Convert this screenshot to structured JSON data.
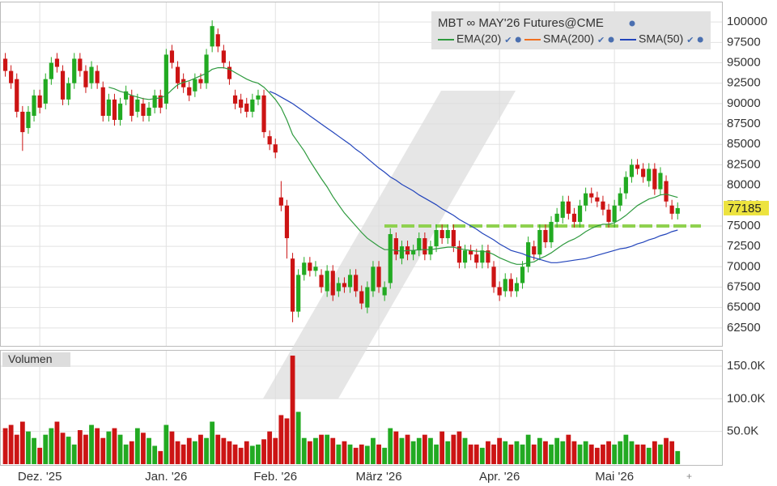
{
  "chart_data": {
    "type": "candlestick",
    "title": "MBT ∞ MAY'26 Futures@CME",
    "categories": [
      null,
      null,
      null,
      null,
      null,
      null,
      "Dez. '25",
      null,
      null,
      null,
      null,
      null,
      null,
      null,
      null,
      null,
      null,
      null,
      null,
      null,
      null,
      null,
      null,
      null,
      null,
      null,
      null,
      null,
      "Jan. '26",
      null,
      null,
      null,
      null,
      null,
      null,
      null,
      null,
      null,
      null,
      null,
      null,
      null,
      null,
      null,
      null,
      null,
      null,
      "Feb. '26",
      null,
      null,
      null,
      null,
      null,
      null,
      null,
      null,
      null,
      null,
      null,
      null,
      null,
      null,
      null,
      null,
      null,
      "März '26",
      null,
      null,
      null,
      null,
      null,
      null,
      null,
      null,
      null,
      null,
      null,
      null,
      null,
      null,
      null,
      null,
      null,
      null,
      null,
      null,
      "Apr. '26",
      null,
      null,
      null,
      null,
      null,
      null,
      null,
      null,
      null,
      null,
      null,
      null,
      null,
      null,
      null,
      null,
      null,
      null,
      null,
      "Mai '26",
      null,
      null,
      null,
      null,
      null,
      null,
      null,
      null,
      null,
      null,
      null
    ],
    "open": [
      95500,
      94000,
      93000,
      89000,
      87000,
      88500,
      91000,
      90000,
      93000,
      95500,
      94000,
      90500,
      92500,
      95500,
      94000,
      92500,
      94000,
      92000,
      88500,
      90500,
      88000,
      90500,
      91000,
      89000,
      90000,
      88500,
      89500,
      91000,
      90000,
      96500,
      94500,
      93000,
      92000,
      91500,
      93000,
      92500,
      97000,
      98500,
      96500,
      94500,
      91000,
      90500,
      90000,
      89000,
      90500,
      91000,
      86000,
      85000,
      78500,
      77500,
      71000,
      64500,
      69000,
      70500,
      69500,
      69000,
      67000,
      69500,
      67000,
      68000,
      67500,
      69000,
      67000,
      65000,
      67000,
      70000,
      66500,
      68000,
      73500,
      71000,
      72500,
      71500,
      72000,
      73500,
      71500,
      72500,
      74500,
      73500,
      74500,
      72500,
      70500,
      72000,
      71500,
      70500,
      72000,
      70000,
      67500,
      67000,
      68500,
      67000,
      68000,
      70000,
      72500,
      71500,
      74500,
      73000,
      75500,
      76000,
      78000,
      76500,
      75500,
      77500,
      79000,
      78500,
      78000,
      77000,
      75500,
      77500,
      79000,
      81000,
      82500,
      82000,
      80500,
      82000,
      79500,
      80500,
      77500,
      76500
    ],
    "high": [
      96200,
      94700,
      93700,
      89700,
      89700,
      91700,
      91700,
      93700,
      95700,
      96200,
      94700,
      93200,
      96200,
      96200,
      94700,
      95200,
      94700,
      92700,
      91200,
      91200,
      90700,
      92200,
      91700,
      91200,
      90700,
      90200,
      91700,
      91700,
      96700,
      97200,
      95200,
      93700,
      92700,
      93700,
      93700,
      96700,
      100200,
      99200,
      97200,
      95200,
      91700,
      91200,
      90700,
      91200,
      91700,
      91700,
      86700,
      85700,
      80500,
      78200,
      71700,
      69700,
      71200,
      71200,
      70700,
      69700,
      70200,
      70200,
      68700,
      68700,
      69700,
      69700,
      67700,
      68200,
      70700,
      70700,
      68200,
      74700,
      74200,
      73200,
      73200,
      72700,
      74200,
      74200,
      73200,
      75200,
      75200,
      75200,
      75200,
      73200,
      72700,
      72700,
      72200,
      72700,
      72700,
      70700,
      68200,
      69200,
      69200,
      68700,
      70700,
      73700,
      73200,
      75200,
      75200,
      76200,
      77200,
      78700,
      78700,
      77200,
      78200,
      79700,
      79700,
      79200,
      78700,
      77700,
      78200,
      79700,
      81700,
      83200,
      83200,
      82700,
      82700,
      82700,
      82200,
      81200,
      78200,
      77885
    ],
    "low": [
      93300,
      91800,
      88300,
      84200,
      86300,
      87800,
      88800,
      89300,
      92300,
      93800,
      89800,
      89800,
      91800,
      93300,
      91300,
      91800,
      91800,
      87800,
      87800,
      87300,
      87300,
      89800,
      87800,
      88300,
      87800,
      87800,
      88800,
      88800,
      89300,
      94300,
      91800,
      91300,
      90300,
      90800,
      91800,
      91800,
      96300,
      96300,
      94300,
      92300,
      89300,
      88800,
      88300,
      88300,
      89800,
      85800,
      84300,
      83300,
      76800,
      71000,
      63200,
      63800,
      68300,
      68800,
      68800,
      66800,
      66300,
      65800,
      66300,
      66800,
      66800,
      66300,
      64800,
      64300,
      66300,
      66800,
      65800,
      67300,
      70800,
      70300,
      70800,
      70800,
      71300,
      70800,
      70800,
      71800,
      72800,
      72800,
      71800,
      69800,
      69800,
      70800,
      69800,
      69800,
      69800,
      66800,
      65800,
      66300,
      66300,
      66300,
      67300,
      69300,
      70800,
      70800,
      72300,
      72300,
      74800,
      75300,
      75800,
      74800,
      74800,
      76800,
      77800,
      77300,
      76300,
      74800,
      74800,
      76800,
      78300,
      80300,
      81300,
      80300,
      79800,
      78800,
      78800,
      77300,
      75800,
      75800
    ],
    "close": [
      94000,
      92500,
      89000,
      86500,
      89000,
      91000,
      89500,
      93000,
      95000,
      94500,
      90500,
      92500,
      95500,
      94000,
      92000,
      94500,
      92500,
      88500,
      90500,
      88000,
      90000,
      91500,
      88500,
      90500,
      88500,
      89500,
      91000,
      89500,
      96000,
      95000,
      92500,
      92000,
      91000,
      93000,
      92500,
      96000,
      99500,
      97000,
      95000,
      93000,
      90000,
      89500,
      89000,
      90500,
      91000,
      86500,
      85000,
      84000,
      77500,
      73500,
      64500,
      69000,
      70500,
      69500,
      70000,
      67500,
      69500,
      66500,
      68000,
      67500,
      69000,
      67000,
      65500,
      67500,
      70000,
      67500,
      67500,
      74000,
      71500,
      72500,
      71500,
      72000,
      73500,
      71500,
      72500,
      74500,
      73500,
      74500,
      72500,
      70500,
      72000,
      71500,
      70500,
      72000,
      70500,
      67500,
      66500,
      68500,
      67000,
      68000,
      70000,
      73000,
      71500,
      74500,
      73000,
      75500,
      76500,
      78000,
      76500,
      75500,
      77500,
      79000,
      78500,
      78000,
      77000,
      75500,
      77500,
      79000,
      81000,
      82500,
      82000,
      81000,
      82000,
      79500,
      81500,
      78000,
      76500,
      77185
    ],
    "up_color": "#22aa22",
    "down_color": "#cc1414",
    "indicators": [
      {
        "name": "EMA(20)",
        "color": "#2e9a3e",
        "values": [
          null,
          null,
          null,
          null,
          null,
          null,
          null,
          null,
          null,
          null,
          null,
          null,
          null,
          null,
          null,
          null,
          null,
          null,
          92000,
          91800,
          91500,
          91300,
          91000,
          90800,
          90600,
          90500,
          90600,
          90700,
          91000,
          91700,
          92300,
          92600,
          92800,
          93100,
          93400,
          93700,
          94200,
          94400,
          94400,
          94200,
          93800,
          93400,
          93000,
          92700,
          92500,
          92000,
          91300,
          90500,
          89500,
          88000,
          86200,
          85200,
          84200,
          83000,
          81900,
          80800,
          79800,
          78600,
          77600,
          76600,
          75800,
          75000,
          74200,
          73500,
          73000,
          72500,
          72100,
          72100,
          72000,
          71900,
          72000,
          72000,
          72100,
          72100,
          72100,
          72200,
          72300,
          72400,
          72400,
          72200,
          72100,
          72000,
          71900,
          71900,
          71800,
          71500,
          71100,
          70800,
          70500,
          70300,
          70300,
          70500,
          70600,
          71000,
          71300,
          71700,
          72200,
          72700,
          73100,
          73400,
          73800,
          74300,
          74700,
          75000,
          75200,
          75200,
          75400,
          75800,
          76300,
          76900,
          77500,
          77900,
          78300,
          78500,
          78800,
          78900,
          78700,
          78500
        ]
      },
      {
        "name": "SMA(200)",
        "color": "#f07020"
      },
      {
        "name": "SMA(50)",
        "color": "#2244bb",
        "values": [
          null,
          null,
          null,
          null,
          null,
          null,
          null,
          null,
          null,
          null,
          null,
          null,
          null,
          null,
          null,
          null,
          null,
          null,
          null,
          null,
          null,
          null,
          null,
          null,
          null,
          null,
          null,
          null,
          null,
          null,
          null,
          null,
          null,
          null,
          null,
          null,
          null,
          null,
          null,
          null,
          null,
          null,
          null,
          null,
          null,
          null,
          91500,
          91200,
          90800,
          90400,
          90000,
          89500,
          89000,
          88500,
          88000,
          87500,
          87000,
          86500,
          86000,
          85500,
          85000,
          84400,
          83900,
          83300,
          82700,
          82100,
          81600,
          81000,
          80600,
          80100,
          79700,
          79300,
          78800,
          78400,
          78000,
          77600,
          77100,
          76700,
          76300,
          75800,
          75400,
          75000,
          74600,
          74100,
          73700,
          73300,
          72800,
          72400,
          72000,
          71800,
          71600,
          71300,
          71100,
          70900,
          70700,
          70500,
          70500,
          70600,
          70700,
          70800,
          70900,
          71000,
          71200,
          71400,
          71600,
          71800,
          72000,
          72200,
          72300,
          72500,
          72800,
          73000,
          73300,
          73500,
          73800,
          74000,
          74300,
          74500
        ]
      }
    ],
    "ylim": [
      60300,
      102200
    ],
    "yticks": [
      100000,
      97500,
      95000,
      92500,
      90000,
      87500,
      85000,
      82500,
      80000,
      77500,
      75000,
      72500,
      70000,
      67500,
      65000,
      62500
    ],
    "grid": true,
    "support_line": 75000,
    "support_color": "#8fd14f",
    "last_price_color": "#ede33e",
    "volume": {
      "title": "Volumen",
      "values": [
        55000,
        60000,
        45000,
        65000,
        50000,
        40000,
        25000,
        45000,
        55000,
        65000,
        48000,
        42000,
        30000,
        52000,
        45000,
        60000,
        55000,
        40000,
        50000,
        55000,
        45000,
        30000,
        35000,
        55000,
        48000,
        40000,
        28000,
        20000,
        60000,
        50000,
        35000,
        30000,
        40000,
        35000,
        45000,
        40000,
        65000,
        45000,
        40000,
        35000,
        30000,
        25000,
        35000,
        28000,
        30000,
        38000,
        50000,
        40000,
        75000,
        70000,
        166000,
        80000,
        40000,
        35000,
        40000,
        45000,
        45000,
        40000,
        30000,
        35000,
        30000,
        25000,
        30000,
        28000,
        40000,
        30000,
        25000,
        55000,
        50000,
        40000,
        45000,
        35000,
        40000,
        45000,
        40000,
        30000,
        50000,
        35000,
        45000,
        50000,
        40000,
        30000,
        30000,
        25000,
        35000,
        30000,
        40000,
        35000,
        30000,
        35000,
        30000,
        45000,
        30000,
        40000,
        35000,
        30000,
        40000,
        35000,
        45000,
        35000,
        30000,
        35000,
        30000,
        25000,
        30000,
        35000,
        30000,
        35000,
        45000,
        35000,
        30000,
        30000,
        25000,
        35000,
        30000,
        40000,
        35000,
        20000
      ],
      "ylim": [
        0,
        171000
      ],
      "yticks": [
        {
          "value": 150000,
          "label": "150.0K"
        },
        {
          "value": 100000,
          "label": "100.0K"
        },
        {
          "value": 50000,
          "label": "50.0K"
        }
      ]
    }
  }
}
